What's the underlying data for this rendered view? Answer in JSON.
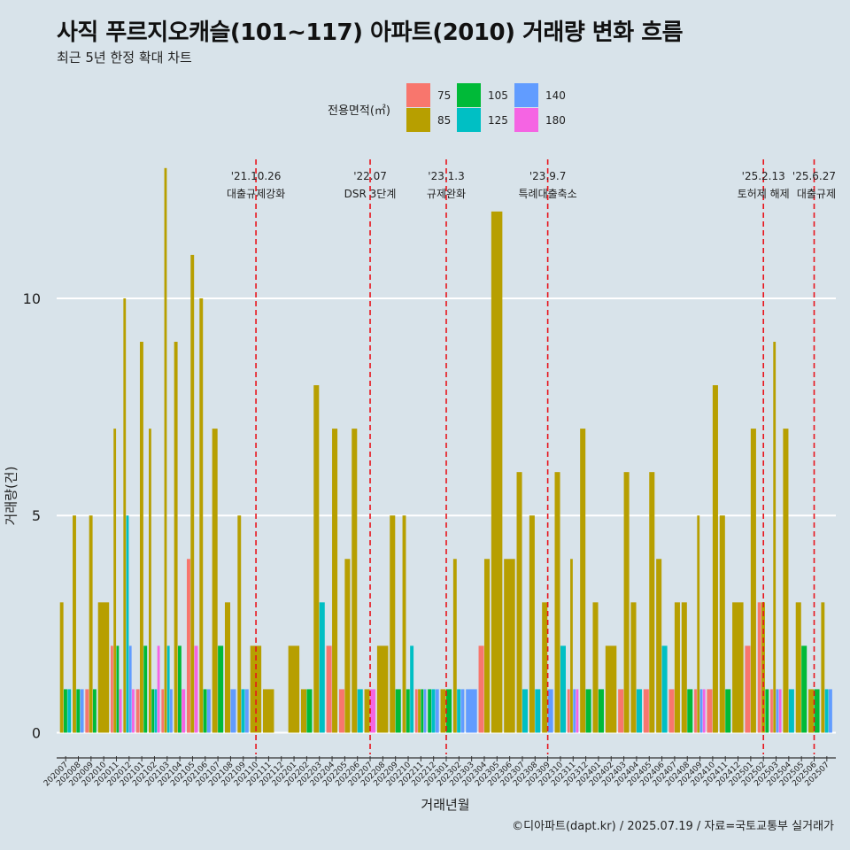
{
  "title": "사직 푸르지오캐슬(101~117) 아파트(2010) 거래량 변화 흐름",
  "subtitle": "최근 5년 한정 확대 차트",
  "caption": "©디아파트(dapt.kr) / 2025.07.19 / 자료=국토교통부 실거래가",
  "legend": {
    "title": "전용면적(㎡)",
    "items": [
      {
        "label": "75",
        "color": "#f8766d"
      },
      {
        "label": "85",
        "color": "#b79f00"
      },
      {
        "label": "105",
        "color": "#00ba38"
      },
      {
        "label": "125",
        "color": "#00bfc4"
      },
      {
        "label": "140",
        "color": "#619cff"
      },
      {
        "label": "180",
        "color": "#f564e3"
      }
    ]
  },
  "chart_data": {
    "type": "bar",
    "title": "사직 푸르지오캐슬(101~117) 아파트(2010) 거래량 변화 흐름",
    "xlabel": "거래년월",
    "ylabel": "거래량(건)",
    "ylim": [
      -0.5,
      13.2
    ],
    "yticks": [
      0,
      5,
      10
    ],
    "categories": [
      "202007",
      "202008",
      "202009",
      "202010",
      "202011",
      "202012",
      "202101",
      "202102",
      "202103",
      "202104",
      "202105",
      "202106",
      "202107",
      "202108",
      "202109",
      "202110",
      "202111",
      "202112",
      "202201",
      "202202",
      "202203",
      "202204",
      "202205",
      "202206",
      "202207",
      "202208",
      "202209",
      "202210",
      "202211",
      "202212",
      "202301",
      "202302",
      "202303",
      "202304",
      "202305",
      "202306",
      "202307",
      "202308",
      "202309",
      "202310",
      "202311",
      "202312",
      "202401",
      "202402",
      "202403",
      "202404",
      "202405",
      "202406",
      "202407",
      "202408",
      "202409",
      "202410",
      "202411",
      "202412",
      "202501",
      "202502",
      "202503",
      "202504",
      "202505",
      "202506",
      "202507"
    ],
    "series": [
      {
        "name": "75",
        "values": [
          0,
          0,
          1,
          0,
          2,
          0,
          1,
          0,
          1,
          0,
          4,
          0,
          0,
          0,
          0,
          0,
          0,
          0,
          0,
          0,
          0,
          2,
          1,
          0,
          0,
          0,
          0,
          0,
          1,
          0,
          0,
          0,
          0,
          2,
          0,
          0,
          0,
          0,
          0,
          0,
          1,
          0,
          0,
          0,
          1,
          0,
          1,
          0,
          1,
          0,
          1,
          1,
          0,
          0,
          2,
          3,
          1,
          0,
          0,
          0,
          0
        ]
      },
      {
        "name": "85",
        "values": [
          3,
          5,
          5,
          3,
          7,
          10,
          9,
          7,
          13,
          9,
          11,
          10,
          7,
          3,
          5,
          2,
          1,
          0,
          2,
          1,
          8,
          7,
          4,
          7,
          1,
          2,
          5,
          5,
          1,
          0,
          1,
          4,
          0,
          4,
          12,
          4,
          6,
          5,
          3,
          6,
          4,
          7,
          3,
          2,
          6,
          3,
          6,
          4,
          3,
          3,
          5,
          8,
          5,
          3,
          7,
          3,
          9,
          7,
          3,
          1,
          3
        ]
      },
      {
        "name": "105",
        "values": [
          1,
          1,
          1,
          0,
          2,
          0,
          2,
          1,
          0,
          2,
          0,
          1,
          2,
          0,
          0,
          0,
          0,
          0,
          0,
          1,
          0,
          0,
          0,
          0,
          0,
          0,
          1,
          1,
          1,
          1,
          1,
          0,
          0,
          0,
          0,
          0,
          0,
          0,
          0,
          0,
          0,
          1,
          1,
          0,
          0,
          0,
          0,
          0,
          0,
          1,
          0,
          0,
          1,
          0,
          0,
          1,
          0,
          0,
          2,
          1,
          0
        ]
      },
      {
        "name": "125",
        "values": [
          1,
          0,
          0,
          0,
          0,
          5,
          0,
          1,
          2,
          0,
          0,
          0,
          0,
          0,
          1,
          0,
          0,
          0,
          0,
          0,
          3,
          0,
          0,
          1,
          0,
          0,
          0,
          2,
          0,
          1,
          0,
          1,
          0,
          0,
          0,
          0,
          1,
          1,
          0,
          2,
          0,
          0,
          0,
          0,
          0,
          1,
          0,
          2,
          0,
          0,
          0,
          0,
          0,
          0,
          0,
          0,
          0,
          1,
          0,
          0,
          1
        ]
      },
      {
        "name": "140",
        "values": [
          0,
          1,
          0,
          0,
          0,
          2,
          0,
          0,
          1,
          0,
          0,
          1,
          0,
          1,
          1,
          0,
          0,
          0,
          0,
          0,
          0,
          0,
          0,
          0,
          0,
          0,
          0,
          0,
          1,
          1,
          0,
          1,
          1,
          0,
          0,
          0,
          0,
          0,
          1,
          0,
          1,
          0,
          0,
          0,
          0,
          0,
          0,
          0,
          0,
          0,
          1,
          0,
          0,
          0,
          0,
          0,
          1,
          0,
          0,
          0,
          1
        ]
      },
      {
        "name": "180",
        "values": [
          0,
          0,
          0,
          0,
          1,
          1,
          0,
          2,
          0,
          1,
          2,
          0,
          0,
          0,
          0,
          0,
          0,
          0,
          0,
          0,
          0,
          0,
          0,
          0,
          1,
          0,
          0,
          0,
          0,
          0,
          0,
          0,
          0,
          0,
          0,
          0,
          0,
          0,
          0,
          0,
          1,
          0,
          0,
          0,
          0,
          0,
          0,
          0,
          0,
          0,
          1,
          0,
          0,
          0,
          0,
          0,
          1,
          0,
          0,
          0,
          0
        ]
      }
    ],
    "events": [
      {
        "month": "202110",
        "date": "'21.10.26",
        "label": "대출규제강화"
      },
      {
        "month": "202207",
        "date": "'22.07",
        "label": "DSR 3단계"
      },
      {
        "month": "202301",
        "date": "'23.1.3",
        "label": "규제완화"
      },
      {
        "month": "202309",
        "date": "'23.9.7",
        "label": "특례대출축소"
      },
      {
        "month": "202502",
        "date": "'25.2.13",
        "label": "토허제 해제"
      },
      {
        "month": "202506",
        "date": "'25.6.27",
        "label": "대출규제"
      }
    ]
  }
}
